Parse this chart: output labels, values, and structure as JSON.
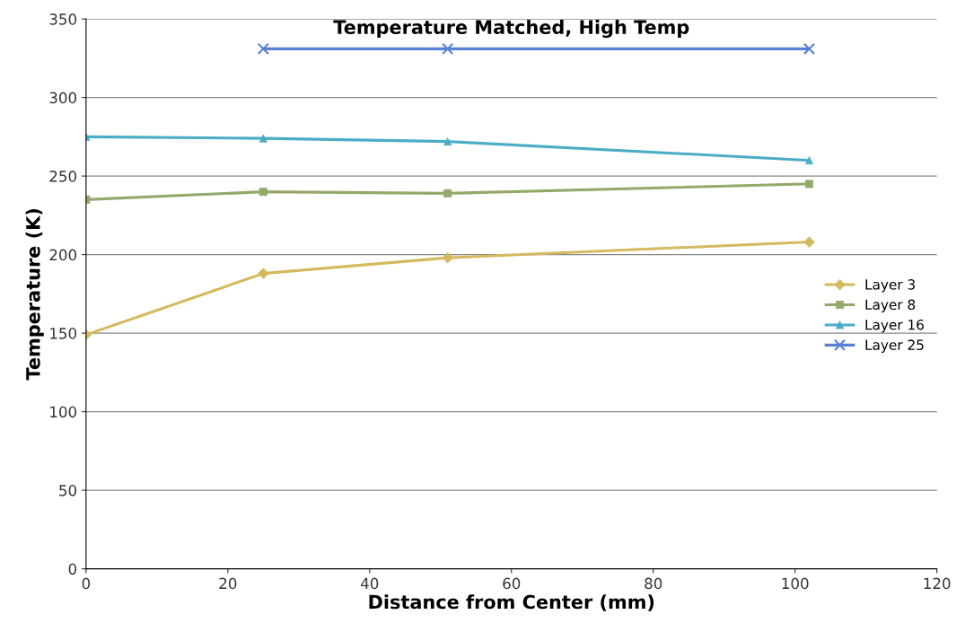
{
  "chart_data": {
    "type": "line",
    "title": "Temperature Matched, High Temp",
    "xlabel": "Distance from Center (mm)",
    "ylabel": "Temperature (K)",
    "xlim": [
      0,
      120
    ],
    "xticks": [
      0,
      20,
      40,
      60,
      80,
      100,
      120
    ],
    "ylim": [
      0,
      350
    ],
    "yticks": [
      0,
      50,
      100,
      150,
      200,
      250,
      300,
      350
    ],
    "grid": "y",
    "legend": "right",
    "series": [
      {
        "name": "Layer 3",
        "color": "#d4b95e",
        "marker": "diamond",
        "x": [
          0,
          25,
          51,
          102
        ],
        "values": [
          149,
          188,
          198,
          208
        ]
      },
      {
        "name": "Layer 8",
        "color": "#93a96a",
        "marker": "square",
        "x": [
          0,
          25,
          51,
          102
        ],
        "values": [
          235,
          240,
          239,
          245
        ]
      },
      {
        "name": "Layer 16",
        "color": "#4bacc6",
        "marker": "triangle",
        "x": [
          0,
          25,
          51,
          102
        ],
        "values": [
          275,
          274,
          272,
          260
        ]
      },
      {
        "name": "Layer 25",
        "color": "#5b7fd4",
        "marker": "cross",
        "x": [
          25,
          51,
          102
        ],
        "values": [
          331,
          331,
          331
        ]
      }
    ]
  }
}
